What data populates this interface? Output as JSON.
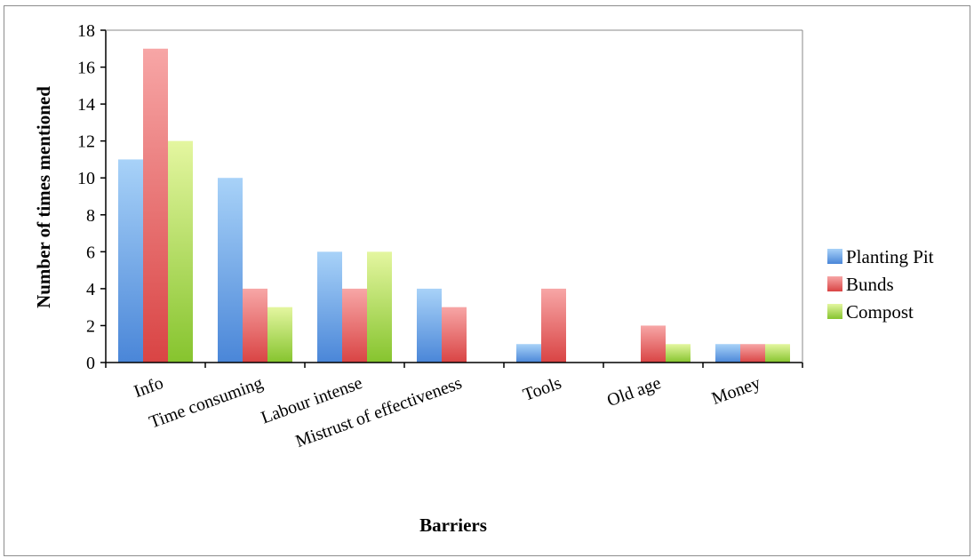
{
  "chart_data": {
    "type": "bar",
    "title": "",
    "xlabel": "Barriers",
    "ylabel": "Number of times mentioned",
    "ylim": [
      0,
      18
    ],
    "yticks": [
      0,
      2,
      4,
      6,
      8,
      10,
      12,
      14,
      16,
      18
    ],
    "grid": false,
    "legend_position": "right",
    "categories": [
      "Info",
      "Time consuming",
      "Labour intense",
      "Mistrust of effectiveness",
      "Tools",
      "Old age",
      "Money"
    ],
    "series": [
      {
        "name": "Planting Pit",
        "values": [
          11,
          10,
          6,
          4,
          1,
          0,
          1
        ],
        "color": "#4a86d8",
        "color_light": "#a8d2f8"
      },
      {
        "name": "Bunds",
        "values": [
          17,
          4,
          4,
          3,
          4,
          2,
          1
        ],
        "color": "#d94444",
        "color_light": "#f7a6a6"
      },
      {
        "name": "Compost",
        "values": [
          12,
          3,
          6,
          0,
          0,
          1,
          1
        ],
        "color": "#86c42e",
        "color_light": "#e4f6a0"
      }
    ]
  }
}
